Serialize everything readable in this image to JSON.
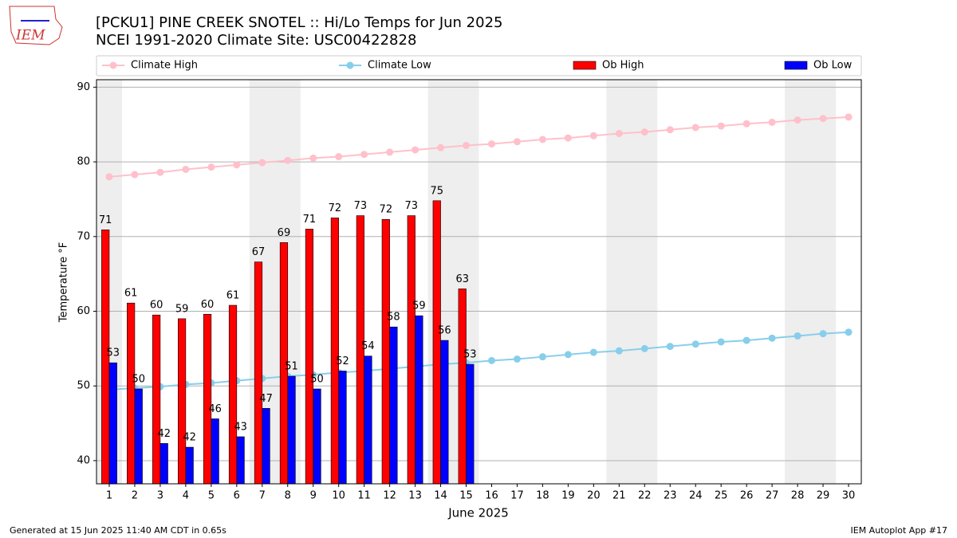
{
  "chart_data": {
    "type": "bar",
    "title": "[PCKU1] PINE CREEK SNOTEL :: Hi/Lo Temps for Jun 2025",
    "subtitle": "NCEI 1991-2020 Climate Site: USC00422828",
    "logo_text": "IEM",
    "xlabel": "June 2025",
    "ylabel": "Temperature °F",
    "x": [
      1,
      2,
      3,
      4,
      5,
      6,
      7,
      8,
      9,
      10,
      11,
      12,
      13,
      14,
      15,
      16,
      17,
      18,
      19,
      20,
      21,
      22,
      23,
      24,
      25,
      26,
      27,
      28,
      29,
      30
    ],
    "xlim": [
      0.5,
      30.5
    ],
    "xticks": [
      1,
      2,
      3,
      4,
      5,
      6,
      7,
      8,
      9,
      10,
      11,
      12,
      13,
      14,
      15,
      16,
      17,
      18,
      19,
      20,
      21,
      22,
      23,
      24,
      25,
      26,
      27,
      28,
      29,
      30
    ],
    "ylim": [
      36.9,
      91
    ],
    "yticks": [
      40,
      50,
      60,
      70,
      80,
      90
    ],
    "grid": true,
    "shaded_spans": [
      [
        0.5,
        1.5
      ],
      [
        6.5,
        8.5
      ],
      [
        13.5,
        15.5
      ],
      [
        20.5,
        22.5
      ],
      [
        27.5,
        29.5
      ]
    ],
    "series": [
      {
        "name": "Climate High",
        "type": "line",
        "color": "#ffc0cb",
        "values": [
          78.0,
          78.3,
          78.6,
          79.0,
          79.3,
          79.6,
          79.9,
          80.2,
          80.5,
          80.7,
          81.0,
          81.3,
          81.6,
          81.9,
          82.2,
          82.4,
          82.7,
          83.0,
          83.2,
          83.5,
          83.8,
          84.0,
          84.3,
          84.6,
          84.8,
          85.1,
          85.3,
          85.6,
          85.8,
          86.0
        ]
      },
      {
        "name": "Climate Low",
        "type": "line",
        "color": "#87ceeb",
        "values": [
          49.5,
          49.7,
          49.9,
          50.2,
          50.4,
          50.7,
          51.0,
          51.3,
          51.5,
          51.8,
          52.0,
          52.3,
          52.6,
          52.9,
          53.1,
          53.4,
          53.6,
          53.9,
          54.2,
          54.5,
          54.7,
          55.0,
          55.3,
          55.6,
          55.9,
          56.1,
          56.4,
          56.7,
          57.0,
          57.2
        ]
      },
      {
        "name": "Ob High",
        "type": "bar",
        "color": "#ff0000",
        "offset": -0.3,
        "values": [
          70.9,
          61.1,
          59.5,
          59.0,
          59.6,
          60.8,
          66.6,
          69.2,
          71.0,
          72.5,
          72.8,
          72.3,
          72.8,
          74.8,
          63.0,
          null,
          null,
          null,
          null,
          null,
          null,
          null,
          null,
          null,
          null,
          null,
          null,
          null,
          null,
          null
        ],
        "value_labels": [
          "71",
          "61",
          "60",
          "59",
          "60",
          "61",
          "67",
          "69",
          "71",
          "72",
          "73",
          "72",
          "73",
          "75",
          "63",
          null,
          null,
          null,
          null,
          null,
          null,
          null,
          null,
          null,
          null,
          null,
          null,
          null,
          null,
          null
        ]
      },
      {
        "name": "Ob Low",
        "type": "bar",
        "color": "#0000ff",
        "offset": 0,
        "values": [
          53.1,
          49.6,
          42.3,
          41.8,
          45.6,
          43.2,
          47.0,
          51.3,
          49.6,
          52.0,
          54.0,
          57.9,
          59.4,
          56.1,
          52.9,
          null,
          null,
          null,
          null,
          null,
          null,
          null,
          null,
          null,
          null,
          null,
          null,
          null,
          null,
          null
        ],
        "value_labels": [
          "53",
          "50",
          "42",
          "42",
          "46",
          "43",
          "47",
          "51",
          "50",
          "52",
          "54",
          "58",
          "59",
          "56",
          "53",
          null,
          null,
          null,
          null,
          null,
          null,
          null,
          null,
          null,
          null,
          null,
          null,
          null,
          null,
          null
        ]
      }
    ],
    "footer_left": "Generated at 15 Jun 2025 11:40 AM CDT in 0.65s",
    "footer_right": "IEM Autoplot App #17"
  }
}
